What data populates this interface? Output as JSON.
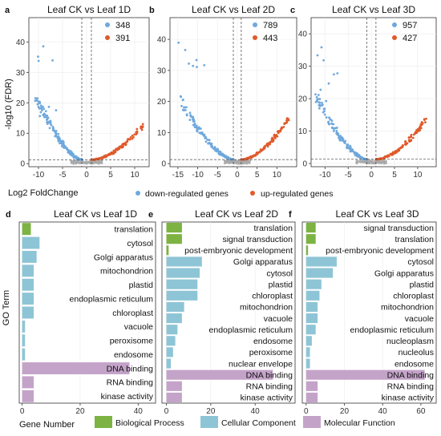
{
  "volcano": [
    {
      "letter": "a",
      "title": "Leaf CK vs Leaf 1D",
      "xlim": [
        -12,
        13
      ],
      "ylim": [
        -1,
        48
      ],
      "xticks": [
        -10,
        -5,
        0,
        5,
        10
      ],
      "yticks": [
        0,
        10,
        20,
        30,
        40
      ],
      "down": {
        "count": "348",
        "xmin": -10.5,
        "ymax": 43
      },
      "up": {
        "count": "391",
        "xmax": 12,
        "ymax": 13
      }
    },
    {
      "letter": "b",
      "title": "Leaf CK vs Leaf 2D",
      "xlim": [
        -17,
        15
      ],
      "ylim": [
        -1,
        47
      ],
      "xticks": [
        -15,
        -10,
        -5,
        0,
        5,
        10
      ],
      "yticks": [
        0,
        10,
        20,
        30,
        40
      ],
      "down": {
        "count": "789",
        "xmin": -15,
        "ymax": 42
      },
      "up": {
        "count": "443",
        "xmax": 13,
        "ymax": 15
      }
    },
    {
      "letter": "c",
      "title": "Leaf CK vs Leaf 3D",
      "xlim": [
        -13,
        14
      ],
      "ylim": [
        -1,
        45
      ],
      "xticks": [
        -10,
        -5,
        0,
        5,
        10
      ],
      "yticks": [
        0,
        10,
        20,
        30,
        40
      ],
      "down": {
        "count": "957",
        "xmin": -12,
        "ymax": 40
      },
      "up": {
        "count": "427",
        "xmax": 12,
        "ymax": 14
      }
    }
  ],
  "volcano_axes": {
    "ylabel": "-log10 (FDR)",
    "xlabel": "Log2 FoldChange",
    "legend_down": "down-regulated genes",
    "legend_up": "up-regulated genes",
    "down_color": "#6fa8dc",
    "up_color": "#e05a2b",
    "ns_color": "#aaaaaa"
  },
  "chart_data": [
    {
      "type": "bar",
      "letter": "d",
      "title": "Leaf CK vs Leaf 1D",
      "categories": [
        "translation",
        "cytosol",
        "Golgi apparatus",
        "mitochondrion",
        "plastid",
        "endoplasmic reticulum",
        "chloroplast",
        "vacuole",
        "peroxisome",
        "endosome",
        "DNA binding",
        "RNA binding",
        "kinase activity"
      ],
      "groups": [
        "BP",
        "CC",
        "CC",
        "CC",
        "CC",
        "CC",
        "CC",
        "CC",
        "CC",
        "CC",
        "MF",
        "MF",
        "MF"
      ],
      "values": [
        3,
        6,
        5,
        4,
        4,
        4,
        4,
        1,
        1,
        1,
        37,
        4,
        4
      ],
      "xlim": [
        -1,
        46
      ],
      "xticks": [
        0,
        20,
        40
      ]
    },
    {
      "type": "bar",
      "letter": "e",
      "title": "Leaf CK vs Leaf 2D",
      "categories": [
        "translation",
        "signal transduction",
        "post-embryonic development",
        "Golgi apparatus",
        "cytosol",
        "plastid",
        "chloroplast",
        "mitochondrion",
        "vacuole",
        "endoplasmic reticulum",
        "endosome",
        "peroxisome",
        "nuclear envelope",
        "DNA binding",
        "RNA binding",
        "kinase activity"
      ],
      "groups": [
        "BP",
        "BP",
        "BP",
        "CC",
        "CC",
        "CC",
        "CC",
        "CC",
        "CC",
        "CC",
        "CC",
        "CC",
        "CC",
        "MF",
        "MF",
        "MF"
      ],
      "values": [
        7,
        7,
        1,
        16,
        15,
        14,
        14,
        8,
        7,
        5,
        4,
        3,
        2,
        48,
        7,
        7
      ],
      "xlim": [
        -2,
        58
      ],
      "xticks": [
        0,
        20,
        40
      ]
    },
    {
      "type": "bar",
      "letter": "f",
      "title": "Leaf CK vs Leaf 3D",
      "categories": [
        "signal transduction",
        "translation",
        "post-embryonic development",
        "cytosol",
        "Golgi apparatus",
        "plastid",
        "chloroplast",
        "mitochondrion",
        "vacuole",
        "endoplasmic reticulum",
        "nucleoplasm",
        "nucleolus",
        "endosome",
        "DNA binding",
        "RNA binding",
        "kinase activity"
      ],
      "groups": [
        "BP",
        "BP",
        "BP",
        "CC",
        "CC",
        "CC",
        "CC",
        "CC",
        "CC",
        "CC",
        "CC",
        "CC",
        "CC",
        "MF",
        "MF",
        "MF"
      ],
      "values": [
        5,
        5,
        1,
        16,
        14,
        8,
        7,
        6,
        6,
        5,
        3,
        2,
        2,
        62,
        6,
        6
      ],
      "xlim": [
        -2,
        68
      ],
      "xticks": [
        0,
        20,
        40,
        60
      ]
    }
  ],
  "go_axes": {
    "ylabel": "GO Term",
    "xlabel": "Gene Number",
    "legend": [
      {
        "key": "BP",
        "label": "Biological Process",
        "color": "#7cb342"
      },
      {
        "key": "CC",
        "label": "Cellular Component",
        "color": "#8ec5d6"
      },
      {
        "key": "MF",
        "label": "Molecular Function",
        "color": "#c4a3c9"
      }
    ]
  }
}
